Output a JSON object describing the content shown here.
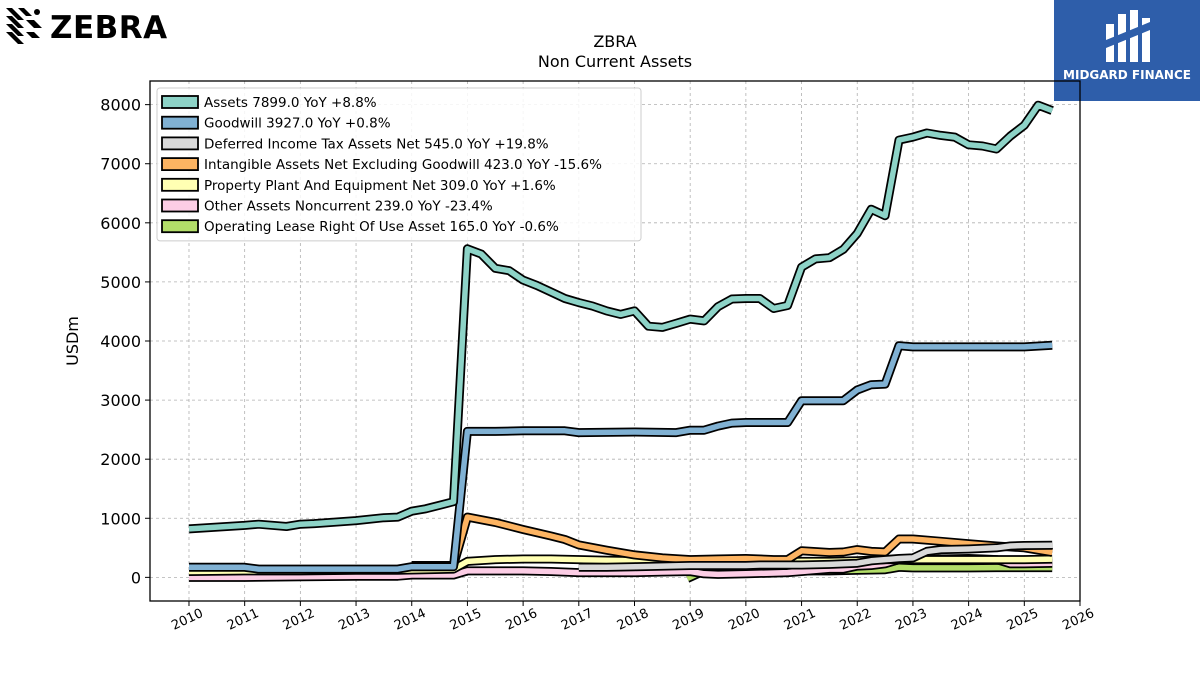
{
  "brand": {
    "logo_text": "ZEBRA",
    "badge_text": "MIDGARD FINANCE",
    "badge_color": "#2e5eaa"
  },
  "chart_data": {
    "type": "line",
    "title": "ZBRA",
    "subtitle": "Non Current  Assets",
    "ylabel": "USDm",
    "xlabel": "",
    "xlim": [
      2009.3,
      2026.0
    ],
    "ylim": [
      -400,
      8400
    ],
    "yticks": [
      0,
      1000,
      2000,
      3000,
      4000,
      5000,
      6000,
      7000,
      8000
    ],
    "xticks": [
      2010,
      2011,
      2012,
      2013,
      2014,
      2015,
      2016,
      2017,
      2018,
      2019,
      2020,
      2021,
      2022,
      2023,
      2024,
      2025,
      2026
    ],
    "grid": true,
    "legend_position": "top-left",
    "series": [
      {
        "name": "Assets",
        "legend": "Assets  7899.0 YoY +8.8%",
        "color": "#8dd3c7",
        "points": [
          [
            2010.0,
            820
          ],
          [
            2011.0,
            880
          ],
          [
            2011.25,
            900
          ],
          [
            2011.75,
            860
          ],
          [
            2012.0,
            900
          ],
          [
            2012.25,
            910
          ],
          [
            2013.0,
            960
          ],
          [
            2013.5,
            1010
          ],
          [
            2013.75,
            1020
          ],
          [
            2014.0,
            1120
          ],
          [
            2014.25,
            1160
          ],
          [
            2014.5,
            1220
          ],
          [
            2014.75,
            1280
          ],
          [
            2015.0,
            5560
          ],
          [
            2015.25,
            5470
          ],
          [
            2015.5,
            5230
          ],
          [
            2015.75,
            5190
          ],
          [
            2016.0,
            5030
          ],
          [
            2016.25,
            4940
          ],
          [
            2016.5,
            4830
          ],
          [
            2016.75,
            4720
          ],
          [
            2017.0,
            4650
          ],
          [
            2017.25,
            4590
          ],
          [
            2017.5,
            4510
          ],
          [
            2017.75,
            4450
          ],
          [
            2018.0,
            4510
          ],
          [
            2018.25,
            4250
          ],
          [
            2018.5,
            4230
          ],
          [
            2018.75,
            4300
          ],
          [
            2019.0,
            4370
          ],
          [
            2019.25,
            4340
          ],
          [
            2019.5,
            4580
          ],
          [
            2019.75,
            4710
          ],
          [
            2020.0,
            4720
          ],
          [
            2020.25,
            4720
          ],
          [
            2020.5,
            4550
          ],
          [
            2020.75,
            4600
          ],
          [
            2021.0,
            5250
          ],
          [
            2021.25,
            5390
          ],
          [
            2021.5,
            5410
          ],
          [
            2021.75,
            5550
          ],
          [
            2022.0,
            5820
          ],
          [
            2022.25,
            6230
          ],
          [
            2022.5,
            6120
          ],
          [
            2022.75,
            7400
          ],
          [
            2023.0,
            7450
          ],
          [
            2023.25,
            7520
          ],
          [
            2023.5,
            7480
          ],
          [
            2023.75,
            7450
          ],
          [
            2024.0,
            7320
          ],
          [
            2024.25,
            7300
          ],
          [
            2024.5,
            7250
          ],
          [
            2024.75,
            7470
          ],
          [
            2025.0,
            7650
          ],
          [
            2025.25,
            7990
          ],
          [
            2025.5,
            7899
          ]
        ]
      },
      {
        "name": "Goodwill",
        "legend": "Goodwill  3927.0 YoY +0.8%",
        "color": "#80b1d3",
        "points": [
          [
            2010.0,
            170
          ],
          [
            2011.0,
            170
          ],
          [
            2011.25,
            140
          ],
          [
            2012.0,
            140
          ],
          [
            2013.0,
            140
          ],
          [
            2013.75,
            140
          ],
          [
            2014.0,
            180
          ],
          [
            2014.75,
            180
          ],
          [
            2015.0,
            2470
          ],
          [
            2015.5,
            2470
          ],
          [
            2016.0,
            2480
          ],
          [
            2016.75,
            2480
          ],
          [
            2017.0,
            2450
          ],
          [
            2018.0,
            2460
          ],
          [
            2018.75,
            2450
          ],
          [
            2019.0,
            2490
          ],
          [
            2019.25,
            2490
          ],
          [
            2019.5,
            2560
          ],
          [
            2019.75,
            2610
          ],
          [
            2020.0,
            2620
          ],
          [
            2020.75,
            2620
          ],
          [
            2021.0,
            2990
          ],
          [
            2021.75,
            2990
          ],
          [
            2022.0,
            3170
          ],
          [
            2022.25,
            3260
          ],
          [
            2022.5,
            3270
          ],
          [
            2022.75,
            3920
          ],
          [
            2023.0,
            3900
          ],
          [
            2024.0,
            3900
          ],
          [
            2025.0,
            3900
          ],
          [
            2025.5,
            3927
          ]
        ]
      },
      {
        "name": "Deferred Income Tax Assets Net",
        "legend": "Deferred Income Tax Assets Net  545.0 YoY +19.8%",
        "color": "#d9d9d9",
        "points": [
          [
            2017.0,
            170
          ],
          [
            2017.5,
            170
          ],
          [
            2018.0,
            180
          ],
          [
            2019.0,
            200
          ],
          [
            2019.25,
            200
          ],
          [
            2020.0,
            200
          ],
          [
            2020.25,
            210
          ],
          [
            2021.0,
            210
          ],
          [
            2021.5,
            220
          ],
          [
            2022.0,
            240
          ],
          [
            2022.25,
            280
          ],
          [
            2022.75,
            320
          ],
          [
            2023.0,
            330
          ],
          [
            2023.25,
            440
          ],
          [
            2023.5,
            470
          ],
          [
            2024.0,
            480
          ],
          [
            2024.25,
            490
          ],
          [
            2024.5,
            500
          ],
          [
            2024.75,
            530
          ],
          [
            2025.0,
            540
          ],
          [
            2025.5,
            545
          ]
        ]
      },
      {
        "name": "Intangible Assets Net Excluding Goodwill",
        "legend": "Intangible Assets Net Excluding Goodwill  423.0 YoY -15.6%",
        "color": "#fdb462",
        "points": [
          [
            2014.0,
            200
          ],
          [
            2014.75,
            200
          ],
          [
            2015.0,
            1020
          ],
          [
            2015.5,
            930
          ],
          [
            2016.0,
            810
          ],
          [
            2016.5,
            700
          ],
          [
            2016.75,
            640
          ],
          [
            2017.0,
            550
          ],
          [
            2017.5,
            460
          ],
          [
            2018.0,
            380
          ],
          [
            2018.5,
            330
          ],
          [
            2019.0,
            300
          ],
          [
            2019.5,
            310
          ],
          [
            2020.0,
            320
          ],
          [
            2020.5,
            300
          ],
          [
            2020.75,
            300
          ],
          [
            2021.0,
            450
          ],
          [
            2021.5,
            420
          ],
          [
            2021.75,
            430
          ],
          [
            2022.0,
            470
          ],
          [
            2022.25,
            440
          ],
          [
            2022.5,
            430
          ],
          [
            2022.75,
            650
          ],
          [
            2023.0,
            650
          ],
          [
            2023.5,
            610
          ],
          [
            2024.0,
            570
          ],
          [
            2024.5,
            530
          ],
          [
            2025.0,
            500
          ],
          [
            2025.5,
            423
          ]
        ]
      },
      {
        "name": "Property Plant And Equipment Net",
        "legend": "Property Plant And Equipment Net  309.0 YoY +1.6%",
        "color": "#ffffb3",
        "points": [
          [
            2010.0,
            100
          ],
          [
            2011.0,
            110
          ],
          [
            2012.0,
            110
          ],
          [
            2013.0,
            120
          ],
          [
            2013.75,
            120
          ],
          [
            2014.75,
            140
          ],
          [
            2015.0,
            270
          ],
          [
            2015.5,
            300
          ],
          [
            2016.0,
            310
          ],
          [
            2016.5,
            310
          ],
          [
            2017.0,
            300
          ],
          [
            2017.5,
            290
          ],
          [
            2018.0,
            280
          ],
          [
            2018.5,
            270
          ],
          [
            2019.0,
            260
          ],
          [
            2019.25,
            260
          ],
          [
            2019.5,
            260
          ],
          [
            2020.0,
            260
          ],
          [
            2020.5,
            260
          ],
          [
            2021.0,
            270
          ],
          [
            2021.5,
            270
          ],
          [
            2022.0,
            280
          ],
          [
            2022.5,
            300
          ],
          [
            2023.0,
            300
          ],
          [
            2023.5,
            300
          ],
          [
            2024.0,
            300
          ],
          [
            2024.5,
            300
          ],
          [
            2025.0,
            300
          ],
          [
            2025.5,
            309
          ]
        ]
      },
      {
        "name": "Other Assets Noncurrent",
        "legend": "Other Assets Noncurrent  239.0 YoY -23.4%",
        "color": "#fccde5",
        "points": [
          [
            2010.0,
            0
          ],
          [
            2011.0,
            0
          ],
          [
            2012.0,
            10
          ],
          [
            2013.0,
            20
          ],
          [
            2013.75,
            20
          ],
          [
            2014.0,
            40
          ],
          [
            2014.75,
            40
          ],
          [
            2015.0,
            110
          ],
          [
            2016.0,
            110
          ],
          [
            2016.5,
            100
          ],
          [
            2017.0,
            80
          ],
          [
            2018.0,
            80
          ],
          [
            2018.5,
            90
          ],
          [
            2019.0,
            100
          ],
          [
            2019.25,
            60
          ],
          [
            2019.5,
            50
          ],
          [
            2020.0,
            60
          ],
          [
            2020.75,
            80
          ],
          [
            2021.0,
            100
          ],
          [
            2021.5,
            140
          ],
          [
            2021.75,
            140
          ],
          [
            2022.0,
            190
          ],
          [
            2022.25,
            200
          ],
          [
            2022.5,
            230
          ],
          [
            2022.75,
            300
          ],
          [
            2023.0,
            290
          ],
          [
            2023.5,
            310
          ],
          [
            2024.0,
            320
          ],
          [
            2024.25,
            310
          ],
          [
            2024.5,
            300
          ],
          [
            2024.75,
            230
          ],
          [
            2025.0,
            230
          ],
          [
            2025.5,
            239
          ]
        ]
      },
      {
        "name": "Operating Lease Right Of Use Asset",
        "legend": "Operating Lease Right Of Use Asset  165.0 YoY -0.6%",
        "color": "#b3de69",
        "points": [
          [
            2018.95,
            -20
          ],
          [
            2019.25,
            110
          ],
          [
            2019.5,
            120
          ],
          [
            2020.0,
            120
          ],
          [
            2020.5,
            100
          ],
          [
            2021.0,
            110
          ],
          [
            2021.5,
            110
          ],
          [
            2022.0,
            120
          ],
          [
            2022.5,
            130
          ],
          [
            2022.75,
            170
          ],
          [
            2023.0,
            160
          ],
          [
            2023.5,
            160
          ],
          [
            2024.0,
            160
          ],
          [
            2024.5,
            165
          ],
          [
            2025.0,
            166
          ],
          [
            2025.5,
            165
          ]
        ]
      }
    ]
  }
}
